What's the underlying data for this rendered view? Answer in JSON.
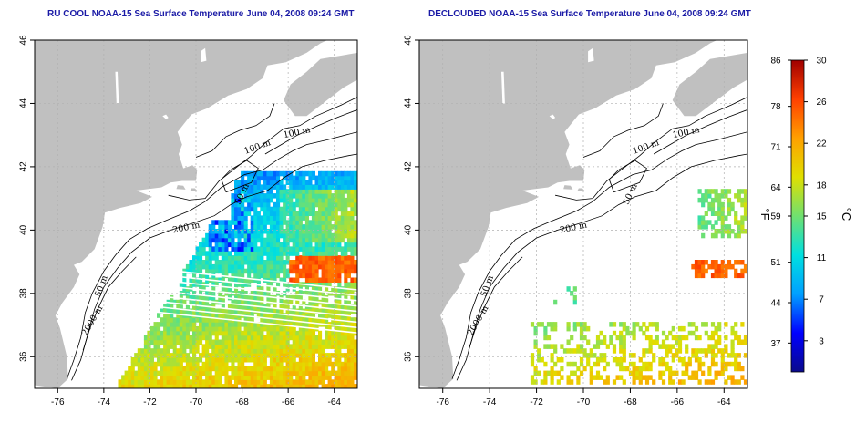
{
  "titles": {
    "left": "RU COOL NOAA-15 Sea Surface Temperature June 04, 2008 09:24 GMT",
    "right": "DECLOUDED NOAA-15 Sea Surface Temperature June 04, 2008 09:24 GMT"
  },
  "chart_data": [
    {
      "type": "heatmap",
      "title": "RU COOL NOAA-15 Sea Surface Temperature June 04, 2008 09:24 GMT",
      "x": {
        "range": [
          -77,
          -63
        ],
        "ticks": [
          -76,
          -74,
          -72,
          -70,
          -68,
          -66,
          -64
        ]
      },
      "y": {
        "range": [
          35,
          46
        ],
        "ticks": [
          36,
          38,
          40,
          42,
          44,
          46
        ]
      },
      "grid": true,
      "contour_labels": [
        "100 m",
        "100 m",
        "50 m",
        "200 m",
        "50 m",
        "2000 m"
      ]
    },
    {
      "type": "heatmap",
      "title": "DECLOUDED NOAA-15 Sea Surface Temperature June 04, 2008 09:24 GMT",
      "x": {
        "range": [
          -77,
          -63
        ],
        "ticks": [
          -76,
          -74,
          -72,
          -70,
          -68,
          -66,
          -64
        ]
      },
      "y": {
        "range": [
          35,
          46
        ],
        "ticks": [
          36,
          38,
          40,
          42,
          44,
          46
        ]
      },
      "grid": true,
      "contour_labels": [
        "100 m",
        "100 m",
        "50 m",
        "200 m",
        "50 m",
        "2000 m"
      ]
    }
  ],
  "colorbar": {
    "fahrenheit_ticks": [
      86,
      78,
      71,
      64,
      59,
      51,
      44,
      37
    ],
    "celsius_ticks": [
      30,
      26,
      22,
      18,
      15,
      11,
      7,
      3
    ],
    "fahrenheit_label": "°F",
    "celsius_label": "°C",
    "range_c": [
      0,
      30
    ],
    "colors": [
      "#0a0a8c",
      "#0000ff",
      "#00a0ff",
      "#00e0e0",
      "#70e070",
      "#e0e000",
      "#ffa000",
      "#ff4000",
      "#a00000"
    ]
  },
  "colors": {
    "land": "#c0c0c0",
    "water": "#ffffff",
    "contour": "#000000",
    "grid": "#b0b0b0",
    "title": "#1a1aa6"
  }
}
